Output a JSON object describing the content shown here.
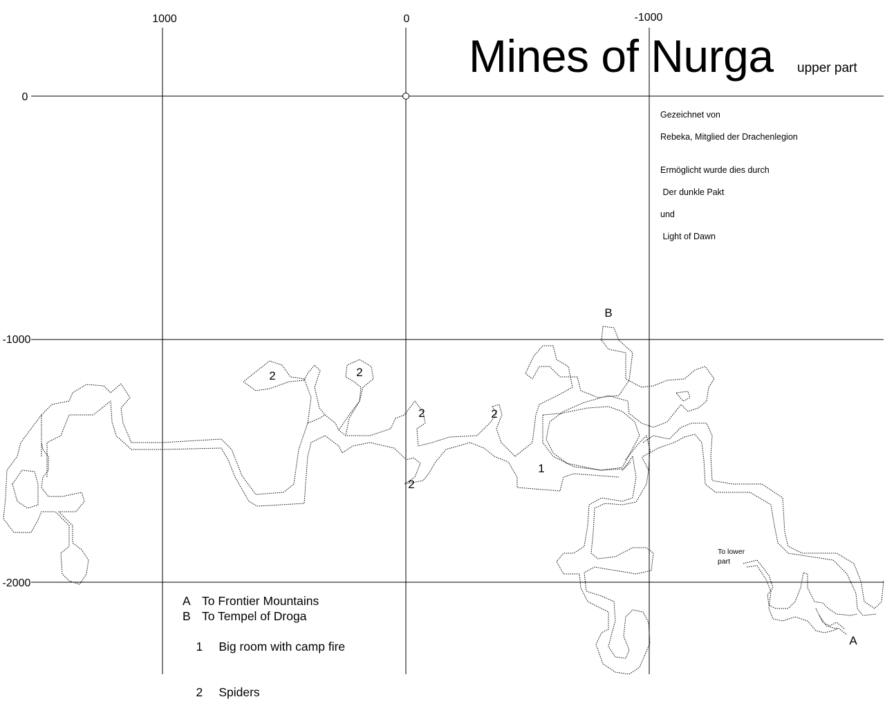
{
  "map": {
    "title": "Mines of Nurga",
    "subtitle": "upper part",
    "credits": [
      "Gezeichnet von",
      "Rebeka, Mitglied der Drachenlegion",
      "Ermöglicht wurde dies durch",
      " Der dunkle Pakt",
      "und",
      " Light of Dawn"
    ],
    "axis": {
      "x_ticks": [
        "1000",
        "0",
        "-1000"
      ],
      "y_ticks": [
        "0",
        "-1000",
        "-2000"
      ]
    },
    "markers": {
      "exit_a": "A",
      "exit_b": "B",
      "camp_room": "1",
      "spider": "2"
    },
    "note_lower_part": [
      "To lower",
      "part"
    ],
    "legend": [
      {
        "key": "A",
        "text": "To Frontier Mountains"
      },
      {
        "key": "B",
        "text": "To Tempel of Droga"
      },
      {
        "key": "1",
        "text": " Big room with camp fire"
      },
      {
        "key": "2",
        "text": " Spiders"
      }
    ]
  }
}
